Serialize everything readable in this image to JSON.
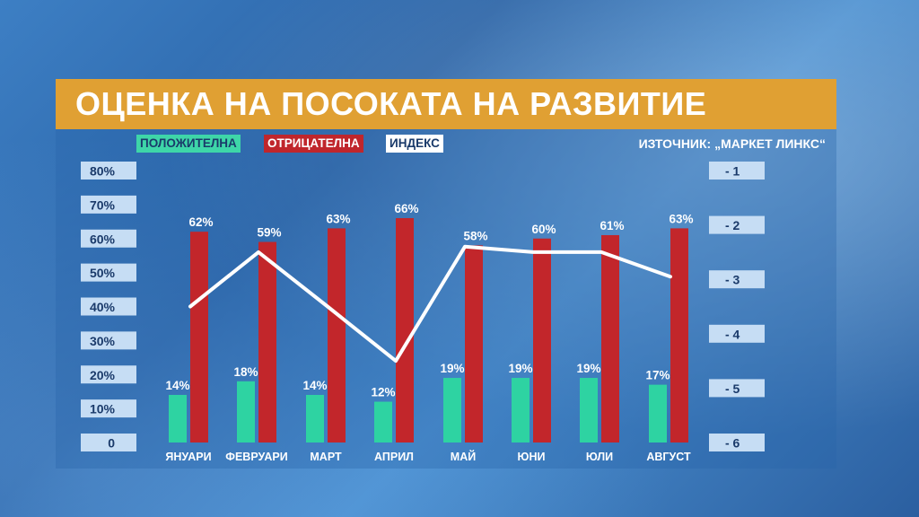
{
  "header": {
    "title": "ОЦЕНКА НА ПОСОКАТА НА РАЗВИТИЕ",
    "source": "ИЗТОЧНИК: „МАРКЕТ ЛИНКС“"
  },
  "legend": [
    {
      "label": "ПОЛОЖИТЕЛНА",
      "color": "#3ed6a8",
      "text_color": "#1a3a6a"
    },
    {
      "label": "ОТРИЦАТЕЛНА",
      "color": "#c0262c",
      "text_color": "#ffffff"
    },
    {
      "label": "ИНДЕКС",
      "color": "#ffffff",
      "text_color": "#1a3a6a"
    }
  ],
  "colors": {
    "positive": "#2ed3a2",
    "negative": "#c2262b",
    "index": "#ffffff",
    "axis_box": "#c6ddf4",
    "title_bar": "#e0a033"
  },
  "chart_data": {
    "type": "bar",
    "categories": [
      "ЯНУАРИ",
      "ФЕВРУАРИ",
      "МАРТ",
      "АПРИЛ",
      "МАЙ",
      "ЮНИ",
      "ЮЛИ",
      "АВГУСТ"
    ],
    "series": [
      {
        "name": "ПОЛОЖИТЕЛНА",
        "values": [
          14,
          18,
          14,
          12,
          19,
          19,
          19,
          17
        ],
        "labels": [
          "14%",
          "18%",
          "14%",
          "12%",
          "19%",
          "19%",
          "19%",
          "17%"
        ]
      },
      {
        "name": "ОТРИЦАТЕЛНА",
        "values": [
          62,
          59,
          63,
          66,
          58,
          60,
          61,
          63
        ],
        "labels": [
          "62%",
          "59%",
          "63%",
          "66%",
          "58%",
          "60%",
          "61%",
          "63%"
        ]
      },
      {
        "name": "ИНДЕКС",
        "type": "line",
        "axis": "right",
        "values": [
          -3.5,
          -2.5,
          -3.5,
          -4.5,
          -2.4,
          -2.5,
          -2.5,
          -2.95
        ]
      }
    ],
    "left_axis": {
      "ticks": [
        "0",
        "10%",
        "20%",
        "30%",
        "40%",
        "50%",
        "60%",
        "70%",
        "80%"
      ],
      "ylim": [
        0,
        80
      ]
    },
    "right_axis": {
      "ticks": [
        "- 6",
        "- 5",
        "- 4",
        "- 3",
        "- 2",
        "- 1"
      ],
      "ylim": [
        -6,
        -1
      ]
    }
  }
}
